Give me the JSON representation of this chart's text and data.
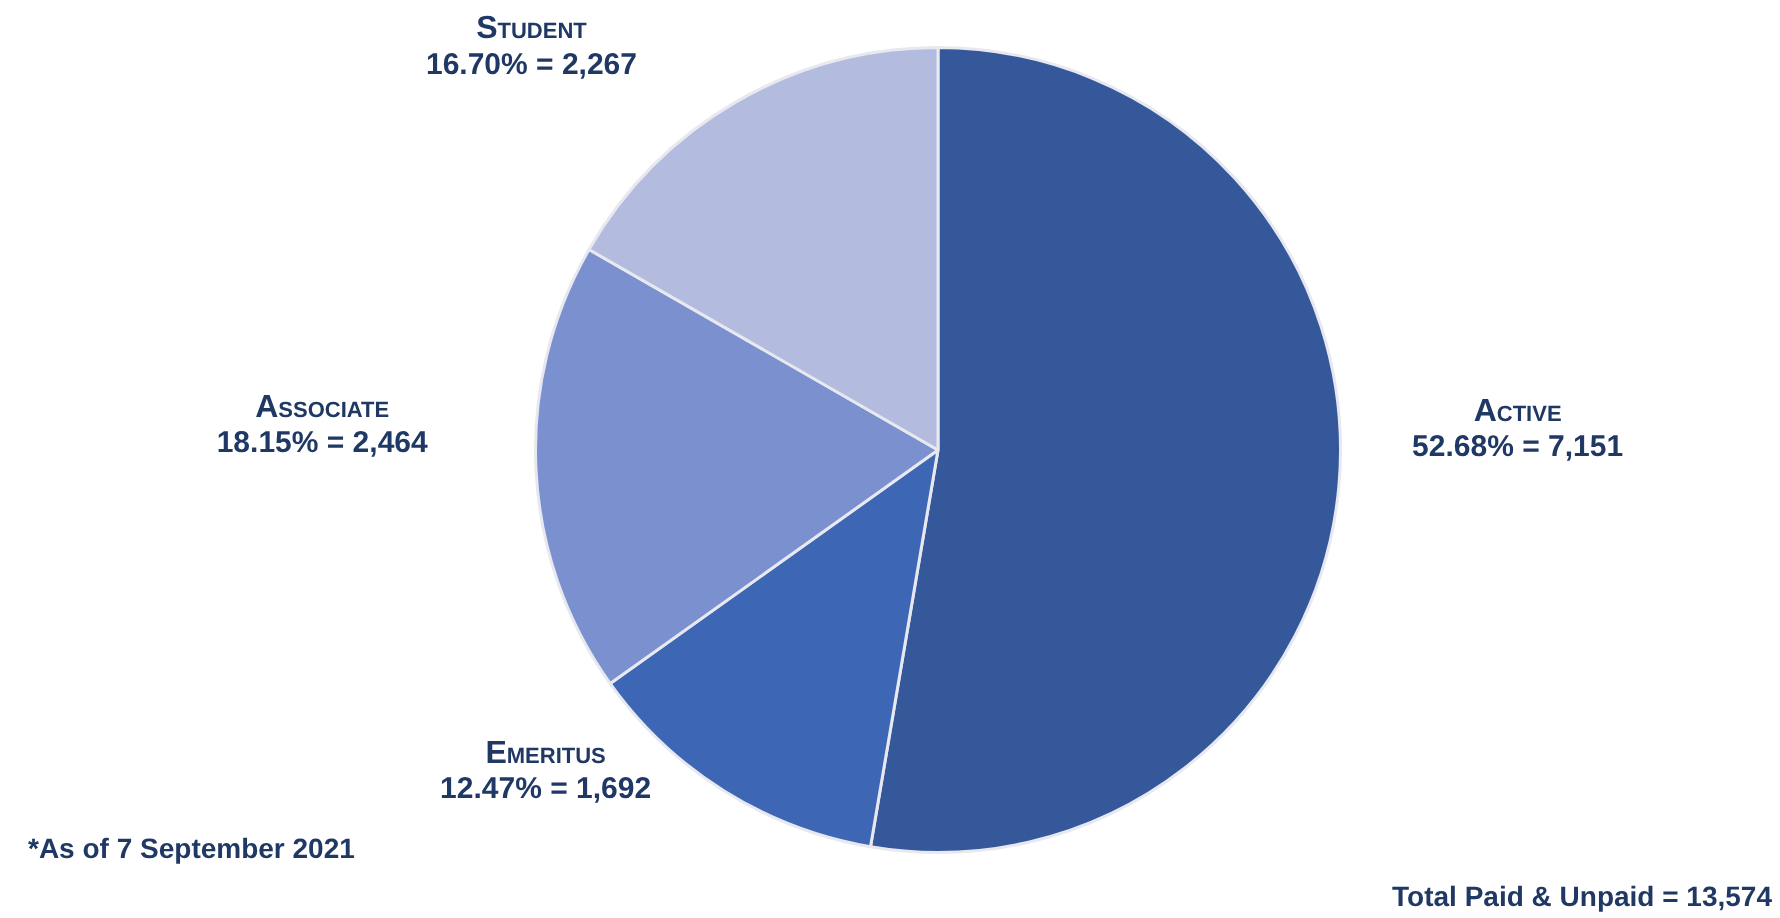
{
  "chart_data": {
    "type": "pie",
    "categories": [
      "Active",
      "Emeritus",
      "Associate",
      "Student"
    ],
    "values": [
      7151,
      1692,
      2464,
      2267
    ],
    "colors": [
      "#34589a",
      "#3d67b5",
      "#7a90cf",
      "#b3bcde"
    ],
    "value_labels": [
      "52.68% = 7,151",
      "12.47% = 1,692",
      "18.15% = 2,464",
      "16.70% = 2,267"
    ],
    "legend": false,
    "annotations": [
      "*As of 7 September 2021",
      "Total Paid & Unpaid = 13,574"
    ]
  }
}
